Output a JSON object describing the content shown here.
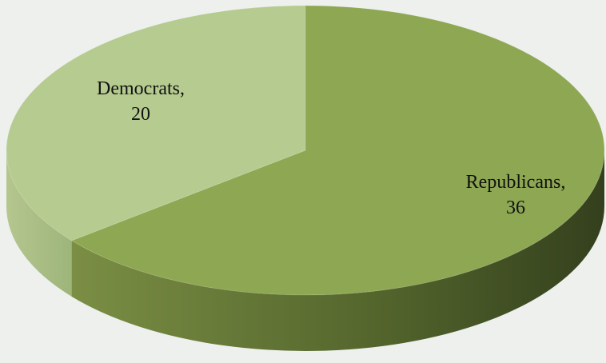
{
  "chart_data": {
    "type": "pie",
    "style": "3d",
    "title": "",
    "slices": [
      {
        "label": "Republicans",
        "value": 36,
        "color": "#8ea752"
      },
      {
        "label": "Democrats",
        "value": 20,
        "color": "#b5cb8f"
      }
    ],
    "labels_text": [
      {
        "name": "Republicans,",
        "value": "36"
      },
      {
        "name": "Democrats,",
        "value": "20"
      }
    ]
  },
  "colors": {
    "background": "#eef0ee",
    "republicans_side_light": "#7b8e44",
    "republicans_side_dark": "#34401d",
    "democrats_side": "#9db57a"
  }
}
